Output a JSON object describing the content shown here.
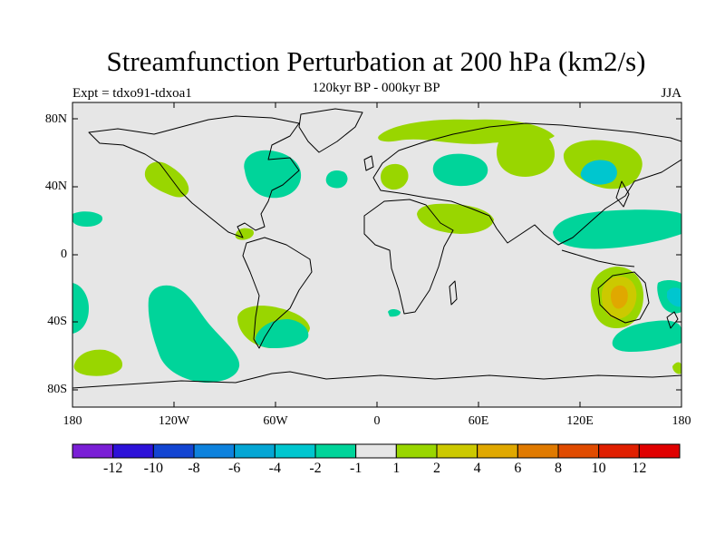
{
  "title": "Streamfunction Perturbation at 200 hPa (km2/s)",
  "subtitle": "120kyr BP - 000kyr BP",
  "left_label": "Expt = tdxo91-tdxoa1",
  "right_label": "JJA",
  "lat_labels": [
    "80N",
    "40N",
    "0",
    "40S",
    "80S"
  ],
  "lon_labels": [
    "180",
    "120W",
    "60W",
    "0",
    "60E",
    "120E",
    "180"
  ],
  "colorbar": {
    "colors": [
      "#7a1fd6",
      "#2d12d8",
      "#1345d2",
      "#0e82dd",
      "#05a6d4",
      "#00c6cf",
      "#00d49a",
      "#e6e6e6",
      "#99d600",
      "#ccc900",
      "#e0a800",
      "#e07a00",
      "#e04b00",
      "#e01f00",
      "#e00000"
    ],
    "labels": [
      "-12",
      "-10",
      "-8",
      "-6",
      "-4",
      "-2",
      "-1",
      "1",
      "2",
      "4",
      "6",
      "8",
      "10",
      "12"
    ]
  },
  "colors": {
    "background": "#e6e6e6",
    "light_green": "#99d600",
    "sea_green": "#00d49a",
    "cyan": "#00c6cf",
    "yellow": "#ccc900",
    "orange": "#e0a800"
  }
}
